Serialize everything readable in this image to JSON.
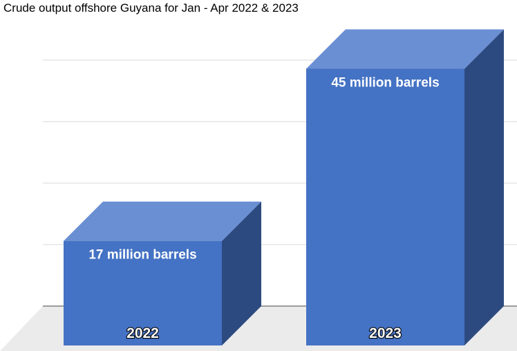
{
  "chart_data": {
    "type": "bar",
    "title": "Crude output offshore Guyana for Jan - Apr 2022 & 2023",
    "categories": [
      "2022",
      "2023"
    ],
    "values": [
      17,
      45
    ],
    "data_labels": [
      "17 million barrels",
      "45 million barrels"
    ],
    "xlabel": "",
    "ylabel": "",
    "ylim": [
      0,
      50
    ],
    "grid": true,
    "legend": "none",
    "three_d": true,
    "colors": {
      "front": "#4472c4",
      "top": "#6a8fd3",
      "side": "#2d4a80",
      "grid": "#d9d9d9",
      "floor": "#ebebeb",
      "axis": "#7f7f7f"
    }
  }
}
